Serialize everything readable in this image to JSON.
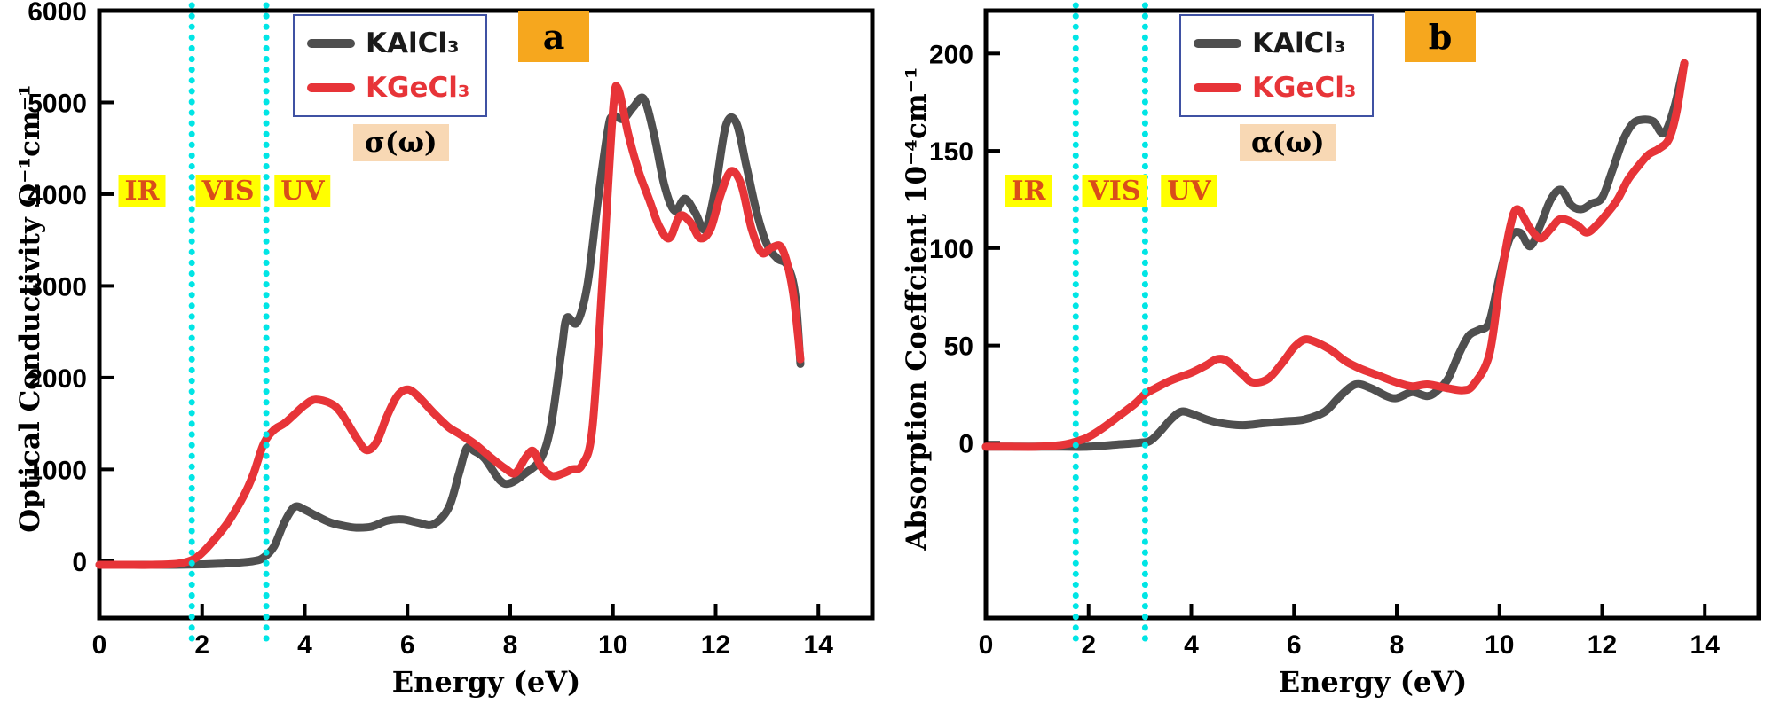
{
  "page": {
    "background": "#ffffff"
  },
  "colors": {
    "frame": "#000000",
    "tick_label": "#000000",
    "legend_border": "#3f51a3",
    "region_line": "#00e5e5",
    "region_label_bg": "#ffff00",
    "region_label_color": "#d94d1a",
    "panel_badge_bg": "#f6a71e",
    "symbol_badge_bg": "#f8d8b4"
  },
  "chart_data": [
    {
      "type": "line",
      "panel_label": "a",
      "symbol_label": "σ(ω)",
      "xlabel": "Energy (eV)",
      "ylabel": "Optical Conductivity Ω⁻¹cm⁻¹",
      "xlim": [
        0,
        15.05
      ],
      "ylim": [
        -620,
        6000
      ],
      "xticks": [
        0,
        2,
        4,
        6,
        8,
        10,
        12,
        14
      ],
      "yticks": [
        0,
        1000,
        2000,
        3000,
        4000,
        5000,
        6000
      ],
      "grid": false,
      "legend_position": "top-center",
      "region_lines_x": [
        1.8,
        3.25
      ],
      "region_labels": [
        "IR",
        "VIS",
        "UV"
      ],
      "series": [
        {
          "key": "kalcl3",
          "name": "KAlCl₃",
          "color": "#4f4f4f",
          "legend_text_color": "#1a1a1a",
          "x": [
            0,
            0.5,
            1,
            1.5,
            2,
            2.5,
            3,
            3.2,
            3.4,
            3.6,
            3.8,
            4,
            4.2,
            4.5,
            4.8,
            5,
            5.3,
            5.6,
            5.9,
            6.2,
            6.5,
            6.8,
            7,
            7.15,
            7.3,
            7.5,
            7.8,
            8,
            8.3,
            8.6,
            8.8,
            9,
            9.1,
            9.3,
            9.5,
            9.7,
            9.9,
            10,
            10.2,
            10.4,
            10.6,
            10.8,
            11,
            11.2,
            11.4,
            11.6,
            11.8,
            12,
            12.2,
            12.4,
            12.6,
            12.8,
            13,
            13.2,
            13.4,
            13.55,
            13.65
          ],
          "y": [
            -40,
            -40,
            -40,
            -40,
            -35,
            -25,
            0,
            40,
            160,
            420,
            590,
            560,
            500,
            420,
            380,
            365,
            375,
            440,
            455,
            420,
            400,
            580,
            950,
            1230,
            1200,
            1120,
            880,
            850,
            960,
            1120,
            1500,
            2300,
            2650,
            2600,
            3000,
            3900,
            4700,
            4850,
            4820,
            4950,
            5040,
            4650,
            4100,
            3820,
            3950,
            3800,
            3620,
            4080,
            4750,
            4780,
            4300,
            3800,
            3450,
            3300,
            3220,
            2900,
            2150
          ]
        },
        {
          "key": "kgecl3",
          "name": "KGeCl₃",
          "color": "#e73438",
          "legend_text_color": "#e73438",
          "x": [
            0,
            0.5,
            1,
            1.5,
            1.8,
            2,
            2.2,
            2.5,
            2.8,
            3,
            3.2,
            3.4,
            3.6,
            3.8,
            4,
            4.2,
            4.5,
            4.7,
            5,
            5.2,
            5.4,
            5.6,
            5.8,
            6,
            6.2,
            6.5,
            6.8,
            7,
            7.3,
            7.6,
            7.9,
            8.1,
            8.3,
            8.45,
            8.6,
            8.8,
            9,
            9.2,
            9.4,
            9.6,
            9.8,
            10,
            10.1,
            10.3,
            10.5,
            10.7,
            10.9,
            11.1,
            11.3,
            11.5,
            11.7,
            11.9,
            12.1,
            12.3,
            12.5,
            12.7,
            12.9,
            13.1,
            13.3,
            13.5,
            13.65
          ],
          "y": [
            -40,
            -40,
            -40,
            -30,
            10,
            90,
            210,
            420,
            700,
            950,
            1280,
            1430,
            1500,
            1600,
            1700,
            1760,
            1720,
            1620,
            1350,
            1210,
            1300,
            1580,
            1800,
            1870,
            1800,
            1620,
            1460,
            1390,
            1280,
            1140,
            1010,
            960,
            1130,
            1200,
            1030,
            930,
            950,
            1000,
            1050,
            1450,
            3100,
            4900,
            5150,
            4650,
            4250,
            3950,
            3650,
            3520,
            3760,
            3700,
            3520,
            3620,
            4000,
            4250,
            4100,
            3620,
            3360,
            3420,
            3400,
            2950,
            2200
          ]
        }
      ]
    },
    {
      "type": "line",
      "panel_label": "b",
      "symbol_label": "α(ω)",
      "xlabel": "Energy (eV)",
      "ylabel": "Absorption Coeffcient 10⁻⁴cm⁻¹",
      "xlim": [
        0,
        15.05
      ],
      "ylim": [
        -90,
        222
      ],
      "xticks": [
        0,
        2,
        4,
        6,
        8,
        10,
        12,
        14
      ],
      "yticks": [
        0,
        50,
        100,
        150,
        200
      ],
      "grid": false,
      "legend_position": "top-center",
      "region_lines_x": [
        1.75,
        3.1
      ],
      "region_labels": [
        "IR",
        "VIS",
        "UV"
      ],
      "series": [
        {
          "key": "kalcl3",
          "name": "KAlCl₃",
          "color": "#4f4f4f",
          "legend_text_color": "#1a1a1a",
          "x": [
            0,
            0.5,
            1,
            1.5,
            2,
            2.5,
            3,
            3.2,
            3.4,
            3.6,
            3.8,
            4,
            4.3,
            4.6,
            5,
            5.4,
            5.8,
            6.2,
            6.6,
            6.9,
            7.2,
            7.5,
            7.8,
            8,
            8.3,
            8.6,
            8.8,
            9,
            9.2,
            9.4,
            9.6,
            9.8,
            10,
            10.2,
            10.4,
            10.6,
            10.8,
            11,
            11.2,
            11.4,
            11.6,
            11.8,
            12,
            12.2,
            12.4,
            12.6,
            12.8,
            13,
            13.2,
            13.4,
            13.6
          ],
          "y": [
            -2,
            -2,
            -2,
            -2,
            -2,
            -1,
            0,
            1,
            6,
            12,
            16,
            15,
            12,
            10,
            9,
            10,
            11,
            12,
            16,
            24,
            30,
            28,
            24,
            23,
            26,
            24,
            27,
            33,
            45,
            55,
            58,
            62,
            85,
            105,
            108,
            101,
            112,
            125,
            130,
            122,
            120,
            123,
            126,
            140,
            155,
            164,
            166,
            165,
            159,
            172,
            195
          ]
        },
        {
          "key": "kgecl3",
          "name": "KGeCl₃",
          "color": "#e73438",
          "legend_text_color": "#e73438",
          "x": [
            0,
            0.5,
            1,
            1.5,
            1.8,
            2,
            2.3,
            2.6,
            2.9,
            3.1,
            3.3,
            3.6,
            4,
            4.3,
            4.5,
            4.7,
            5,
            5.2,
            5.5,
            5.8,
            6,
            6.2,
            6.4,
            6.7,
            7,
            7.3,
            7.6,
            8,
            8.3,
            8.6,
            9,
            9.3,
            9.5,
            9.8,
            10,
            10.2,
            10.35,
            10.6,
            10.8,
            11,
            11.2,
            11.5,
            11.7,
            11.9,
            12.1,
            12.3,
            12.5,
            12.7,
            12.9,
            13.1,
            13.3,
            13.45,
            13.6
          ],
          "y": [
            -2,
            -2,
            -2,
            -1,
            1,
            3,
            8,
            14,
            20,
            25,
            28,
            32,
            36,
            40,
            43,
            42,
            35,
            31,
            33,
            42,
            49,
            53,
            52,
            48,
            42,
            38,
            35,
            31,
            29,
            30,
            28,
            27,
            30,
            45,
            80,
            110,
            120,
            110,
            105,
            110,
            115,
            112,
            108,
            112,
            118,
            125,
            135,
            142,
            148,
            151,
            156,
            170,
            195
          ]
        }
      ]
    }
  ]
}
